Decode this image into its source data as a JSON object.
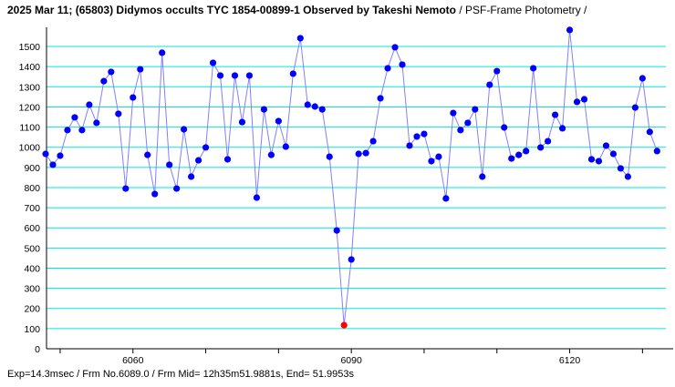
{
  "chart_data": {
    "type": "line",
    "title": "2025 Mar 11; (65803) Didymos occults TYC 1854-00899-1 Observed by Takeshi Nemoto",
    "subtitle": "/ PSF-Frame Photometry /",
    "footer": "Exp=14.3msec / Frm No.6089.0 / Frm Mid= 12h35m51.9881s,  End= 51.9953s",
    "xlabel": "",
    "ylabel": "",
    "xlim": [
      6047.9,
      6133
    ],
    "ylim": [
      0,
      1600
    ],
    "yticks": [
      0,
      100,
      200,
      300,
      400,
      500,
      600,
      700,
      800,
      900,
      1000,
      1100,
      1200,
      1300,
      1400,
      1500
    ],
    "xticks_labeled": [
      6060,
      6090,
      6120
    ],
    "xticks_minor": [
      6050,
      6070,
      6080,
      6100,
      6110,
      6130
    ],
    "grid": "horizontal",
    "highlight_frame": 6089,
    "colors": {
      "points": "#0000ff",
      "line": "#8080ff",
      "highlight": "#ff0000",
      "grid": "#00e5e5"
    },
    "x_start": 6048,
    "values": [
      967,
      913,
      958,
      1085,
      1148,
      1085,
      1211,
      1121,
      1328,
      1374,
      1166,
      795,
      1247,
      1387,
      962,
      768,
      1469,
      913,
      795,
      1089,
      854,
      935,
      999,
      1419,
      1356,
      940,
      1356,
      1125,
      1356,
      750,
      1188,
      962,
      1130,
      1003,
      1365,
      1541,
      1211,
      1202,
      1188,
      953,
      587,
      117,
      443,
      967,
      971,
      1030,
      1243,
      1392,
      1496,
      1410,
      1008,
      1053,
      1066,
      931,
      953,
      746,
      1170,
      1085,
      1121,
      1188,
      854,
      1310,
      1378,
      1098,
      944,
      962,
      981,
      1392,
      999,
      1030,
      1161,
      1094,
      1582,
      1225,
      1238,
      940,
      931,
      1008,
      967,
      895,
      854,
      1197,
      1342,
      1076,
      981
    ]
  }
}
